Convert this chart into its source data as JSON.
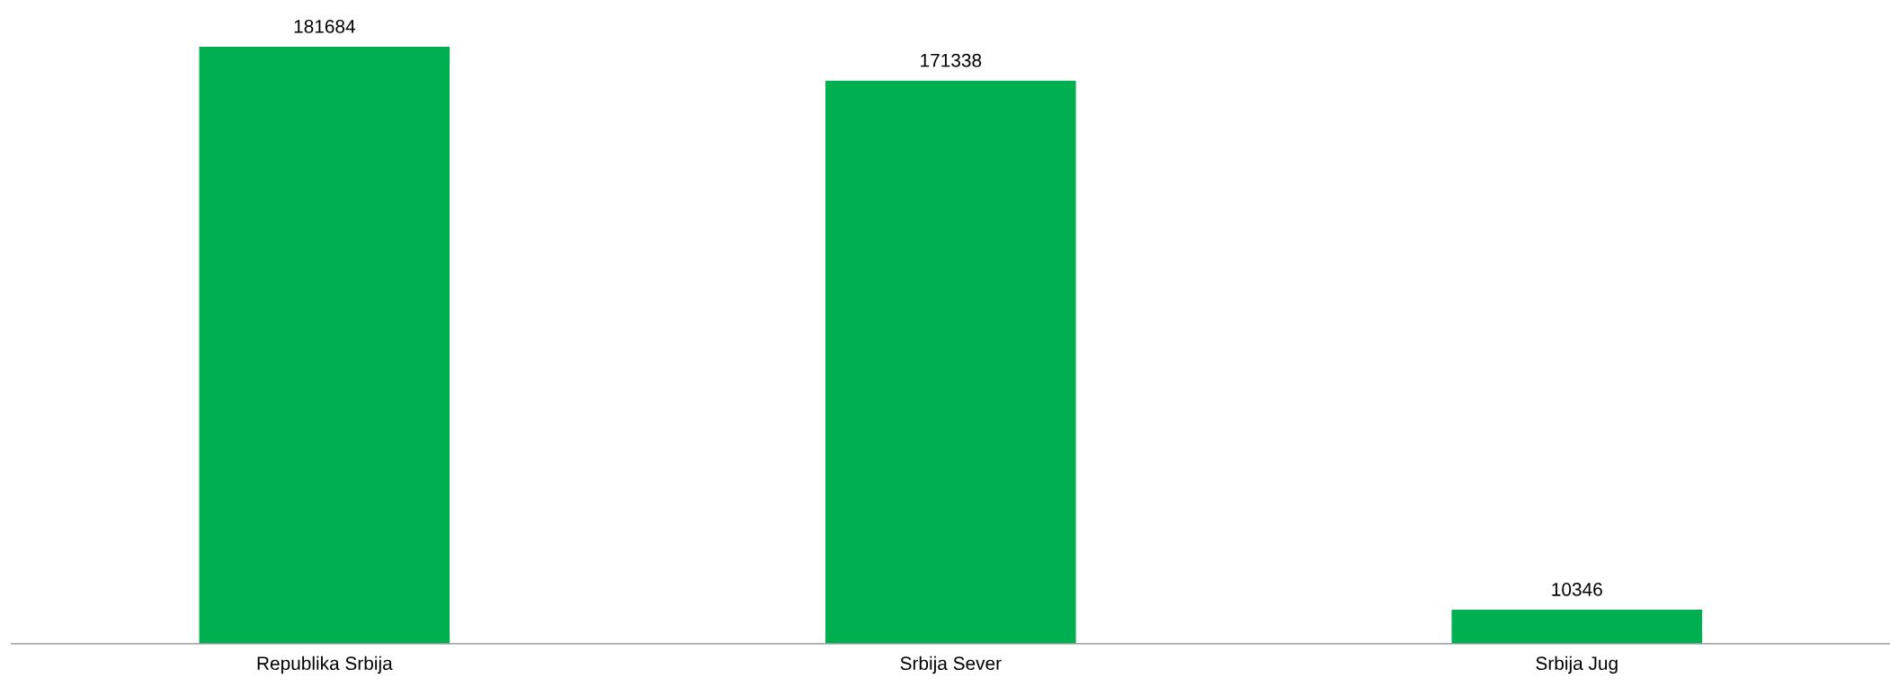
{
  "chart_data": {
    "type": "bar",
    "categories": [
      "Republika Srbija",
      "Srbija Sever",
      "Srbija Jug"
    ],
    "values": [
      181684,
      171338,
      10346
    ],
    "color": "#00b050",
    "data_labels": true,
    "grid": false,
    "legend": false
  }
}
